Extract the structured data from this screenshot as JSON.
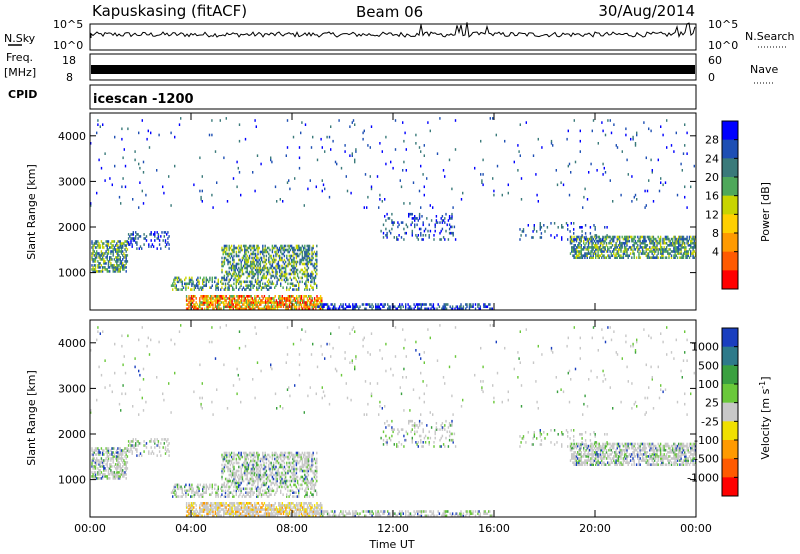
{
  "header": {
    "station": "Kapuskasing (fitACF)",
    "beam": "Beam 06",
    "date": "30/Aug/2014"
  },
  "strips": {
    "nsky_label": "N.Sky",
    "nsky_ticks": [
      "10^5",
      "10^0"
    ],
    "nsearch_label": "N.Search",
    "freq_label_1": "Freq.",
    "freq_label_2": "[MHz]",
    "freq_ticks": [
      "18",
      "8"
    ],
    "nave_label": "Nave",
    "nave_ticks": [
      "60",
      "0"
    ],
    "cpid_label": "CPID",
    "cpid_text": "icescan -1200"
  },
  "chart_data": [
    {
      "type": "heatmap",
      "name": "power",
      "ylabel": "Slant Range [km]",
      "xlabel": "",
      "ylim": [
        180,
        4500
      ],
      "yticks": [
        "1000",
        "2000",
        "3000",
        "4000"
      ],
      "colorbar": {
        "label": "Power [dB]",
        "ticks": [
          "4",
          "8",
          "12",
          "16",
          "20",
          "24",
          "28"
        ],
        "colors": [
          "#0000ff",
          "#1e4fb4",
          "#3a7a7a",
          "#4fa85a",
          "#c8d400",
          "#ffd000",
          "#ff9a00",
          "#ff5a00",
          "#ff0000"
        ]
      }
    },
    {
      "type": "heatmap",
      "name": "velocity",
      "ylabel": "Slant Range [km]",
      "xlabel": "Time UT",
      "ylim": [
        180,
        4500
      ],
      "xticks": [
        "00:00",
        "04:00",
        "08:00",
        "12:00",
        "16:00",
        "20:00",
        "00:00"
      ],
      "yticks": [
        "1000",
        "2000",
        "3000",
        "4000"
      ],
      "colorbar": {
        "label": "Velocity [m s",
        "label_sup": "-1",
        "label_end": "]",
        "ticks": [
          "1000",
          "500",
          "100",
          "25",
          "-25",
          "-100",
          "-500",
          "-1000"
        ],
        "colors": [
          "#1a3fbf",
          "#2e7a8a",
          "#3aa040",
          "#6ac83a",
          "#c8c8c8",
          "#f0e000",
          "#ff9a00",
          "#ff5a00",
          "#ff0000"
        ]
      }
    }
  ]
}
